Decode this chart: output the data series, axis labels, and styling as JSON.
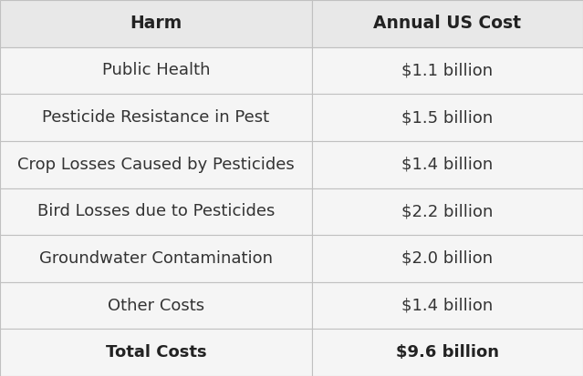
{
  "col_headers": [
    "Harm",
    "Annual US Cost"
  ],
  "rows": [
    [
      "Public Health",
      "$1.1 billion"
    ],
    [
      "Pesticide Resistance in Pest",
      "$1.5 billion"
    ],
    [
      "Crop Losses Caused by Pesticides",
      "$1.4 billion"
    ],
    [
      "Bird Losses due to Pesticides",
      "$2.2 billion"
    ],
    [
      "Groundwater Contamination",
      "$2.0 billion"
    ],
    [
      "Other Costs",
      "$1.4 billion"
    ],
    [
      "Total Costs",
      "$9.6 billion"
    ]
  ],
  "header_bg": "#e8e8e8",
  "row_bg": "#f5f5f5",
  "total_row_bg": "#f5f5f5",
  "border_color": "#c0c0c0",
  "text_color": "#333333",
  "header_text_color": "#222222",
  "col_split": 0.535,
  "fig_width": 6.39,
  "fig_height": 4.13,
  "header_fontsize": 13.5,
  "cell_fontsize": 13
}
